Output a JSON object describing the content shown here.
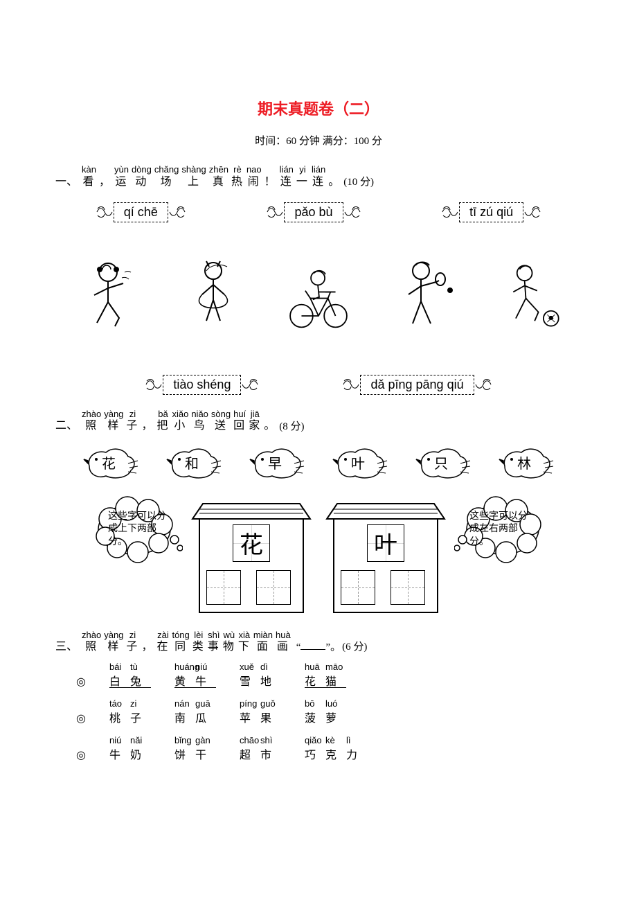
{
  "title": {
    "text": "期末真题卷（二）",
    "color": "#ed1c24",
    "fontsize": 22
  },
  "subtitle": "时间：60 分钟  满分：100 分",
  "background_color": "#ffffff",
  "text_color": "#000000",
  "q1": {
    "prefix": "一、",
    "words": [
      {
        "p": "kàn",
        "h": "看"
      },
      {
        "p": "",
        "h": "，"
      },
      {
        "p": "yùn",
        "h": "运"
      },
      {
        "p": "dòng",
        "h": "动"
      },
      {
        "p": "chǎng",
        "h": "场"
      },
      {
        "p": "shàng",
        "h": "上"
      },
      {
        "p": "zhēn",
        "h": "真"
      },
      {
        "p": "rè",
        "h": "热"
      },
      {
        "p": "nao",
        "h": "闹"
      },
      {
        "p": "",
        "h": "！"
      },
      {
        "p": "lián",
        "h": "连"
      },
      {
        "p": "yi",
        "h": "一"
      },
      {
        "p": "lián",
        "h": "连"
      },
      {
        "p": "",
        "h": "。"
      }
    ],
    "points": "(10 分)",
    "top_labels": [
      {
        "text": "qí  chē"
      },
      {
        "text": "pǎo  bù"
      },
      {
        "text": "tī zú qiú"
      }
    ],
    "bottom_labels": [
      {
        "text": "tiào shéng"
      },
      {
        "text": "dǎ pīng pāng qiú"
      }
    ],
    "figures": [
      "running",
      "jump-rope",
      "cycling",
      "ping-pong",
      "soccer"
    ]
  },
  "q2": {
    "prefix": "二、",
    "words": [
      {
        "p": "zhào",
        "h": "照"
      },
      {
        "p": "yàng",
        "h": "样"
      },
      {
        "p": "zi",
        "h": "子"
      },
      {
        "p": "",
        "h": "，"
      },
      {
        "p": "bǎ",
        "h": "把"
      },
      {
        "p": "xiǎo",
        "h": "小"
      },
      {
        "p": "niǎo",
        "h": "鸟"
      },
      {
        "p": "sòng",
        "h": "送"
      },
      {
        "p": "huí",
        "h": "回"
      },
      {
        "p": "jiā",
        "h": "家"
      },
      {
        "p": "",
        "h": "。"
      }
    ],
    "points": "(8 分)",
    "birds": [
      "花",
      "和",
      "早",
      "叶",
      "只",
      "林"
    ],
    "house_left_char": "花",
    "house_right_char": "叶",
    "cloud_left": "这些字可以分成上下两部分。",
    "cloud_right": "这些字可以分成左右两部分。"
  },
  "q3": {
    "prefix": "三、",
    "words": [
      {
        "p": "zhào",
        "h": "照"
      },
      {
        "p": "yàng",
        "h": "样"
      },
      {
        "p": "zi",
        "h": "子"
      },
      {
        "p": "",
        "h": "，"
      },
      {
        "p": "zài",
        "h": "在"
      },
      {
        "p": "tóng",
        "h": "同"
      },
      {
        "p": "lèi",
        "h": "类"
      },
      {
        "p": "shì",
        "h": "事"
      },
      {
        "p": "wù",
        "h": "物"
      },
      {
        "p": "xià",
        "h": "下"
      },
      {
        "p": "miàn",
        "h": "面"
      },
      {
        "p": "huà",
        "h": "画"
      }
    ],
    "tail_open": "“",
    "tail_close": "”。",
    "points": "(6 分)",
    "rows": [
      [
        {
          "p": [
            "bái",
            "tù"
          ],
          "h": "白兔",
          "u": true
        },
        {
          "p": [
            "huáng",
            "niú"
          ],
          "h": "黄牛",
          "u": true
        },
        {
          "p": [
            "xuě",
            "dì"
          ],
          "h": "雪地",
          "u": false
        },
        {
          "p": [
            "huā",
            "māo"
          ],
          "h": "花猫",
          "u": true
        }
      ],
      [
        {
          "p": [
            "táo",
            "zi"
          ],
          "h": "桃子",
          "u": false
        },
        {
          "p": [
            "nán",
            "guā"
          ],
          "h": "南瓜",
          "u": false
        },
        {
          "p": [
            "píng",
            "guǒ"
          ],
          "h": "苹果",
          "u": false
        },
        {
          "p": [
            "bō",
            "luó"
          ],
          "h": "菠萝",
          "u": false
        }
      ],
      [
        {
          "p": [
            "niú",
            "nǎi"
          ],
          "h": "牛奶",
          "u": false
        },
        {
          "p": [
            "bǐng",
            "gàn"
          ],
          "h": "饼干",
          "u": false
        },
        {
          "p": [
            "chāo",
            "shì"
          ],
          "h": "超市",
          "u": false
        },
        {
          "p": [
            "qiǎo",
            "kè",
            "lì"
          ],
          "h": "巧克力",
          "u": false
        }
      ]
    ]
  }
}
